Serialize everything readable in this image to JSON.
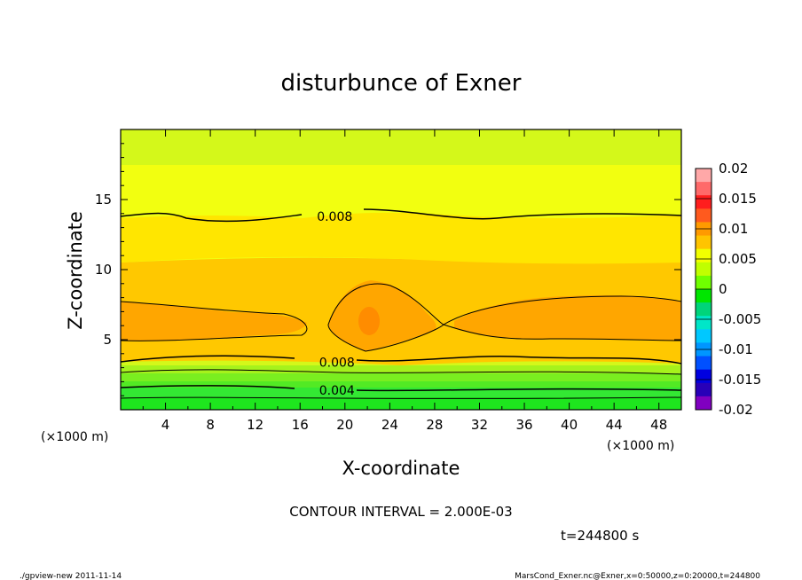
{
  "chart_data": {
    "type": "contour",
    "title": "disturbunce of Exner",
    "xlabel": "X-coordinate",
    "ylabel": "Z-coordinate",
    "x_unit": "(×1000 m)",
    "y_unit": "(×1000 m)",
    "xlim": [
      0,
      50
    ],
    "ylim": [
      0,
      20
    ],
    "x_ticks": [
      4,
      8,
      12,
      16,
      20,
      24,
      28,
      32,
      36,
      40,
      44,
      48
    ],
    "y_ticks": [
      5,
      10,
      15
    ],
    "contour_interval_text": "CONTOUR INTERVAL = 2.000E-03",
    "time_text": "t=244800 s",
    "contour_labels": [
      {
        "text": "0.008",
        "x": 17.5,
        "z": 13.8
      },
      {
        "text": "0.008",
        "x": 17.7,
        "z": 3.4
      },
      {
        "text": "0.004",
        "x": 17.7,
        "z": 1.4
      }
    ],
    "colorbar": {
      "labels": [
        "0.02",
        "0.015",
        "0.01",
        "0.005",
        "0",
        "-0.005",
        "-0.01",
        "-0.015",
        "-0.02"
      ],
      "levels": [
        0.02,
        0.015,
        0.01,
        0.005,
        0,
        -0.005,
        -0.01,
        -0.015,
        -0.02
      ],
      "colors": [
        "#ffa8a8",
        "#ff6a6a",
        "#ff1e1e",
        "#ff5a1e",
        "#ff9a00",
        "#ffc400",
        "#f2ff00",
        "#c0ff00",
        "#6fff00",
        "#00e600",
        "#00d47a",
        "#00e6c8",
        "#00c8ff",
        "#0096ff",
        "#0050ff",
        "#0000e0",
        "#2800b8",
        "#8000c0"
      ]
    },
    "bands": {
      "colors": [
        "#1ee61e",
        "#33e833",
        "#52ea24",
        "#7aee20",
        "#a6f21c",
        "#d4f81a",
        "#f2ff10",
        "#ffe600",
        "#ffc800",
        "#ffa600",
        "#ff8c00",
        "#ff7a14"
      ]
    }
  },
  "footer": {
    "left": "./gpview-new  2011-11-14",
    "right": "MarsCond_Exner.nc@Exner,x=0:50000,z=0:20000,t=244800"
  }
}
